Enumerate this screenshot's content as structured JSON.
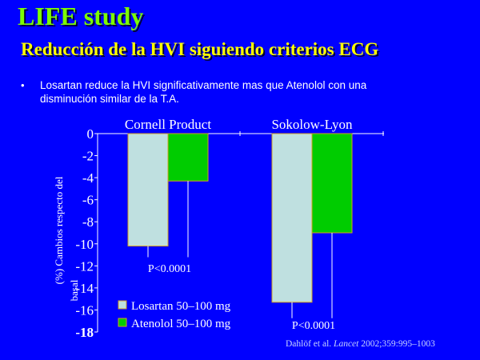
{
  "slide": {
    "title": "LIFE study",
    "subtitle": "Reducción de la HVI siguiendo criterios ECG",
    "bullet_marker": "•",
    "bullet": "Losartan reduce la HVI significativamente mas que Atenolol con una disminución similar de la T.A.",
    "citation": {
      "authors": "Dahlöf et al.",
      "journal": "Lancet",
      "ref": "2002;359:995–1003"
    }
  },
  "colors": {
    "background": "#0000ff",
    "title": "#7cfc00",
    "subtitle": "#ffff00",
    "losartan": "#bfe0e0",
    "atenolol": "#00cc00",
    "bar_outline": "#d4a020",
    "text": "#ffffff"
  },
  "chart_data": {
    "type": "bar",
    "categories": [
      "Cornell Product",
      "Sokolow-Lyon"
    ],
    "series": [
      {
        "name": "Losartan 50–100 mg",
        "values": [
          -10.2,
          -15.3
        ]
      },
      {
        "name": "Atenolol 50–100 mg",
        "values": [
          -4.3,
          -9.0
        ]
      }
    ],
    "ylabel_lines": [
      "(%) Cambios respecto del",
      "basal"
    ],
    "ylim": [
      -18,
      0
    ],
    "yticks": [
      0,
      -2,
      -4,
      -6,
      -8,
      -10,
      -12,
      -14,
      -16,
      -18
    ],
    "ytick_labels": [
      "0",
      "-2",
      "-4",
      "-6",
      "-8",
      "-10",
      "-12",
      "-14",
      "-16",
      "-18"
    ],
    "annotations": [
      {
        "category": "Cornell Product",
        "text": "P<0.0001"
      },
      {
        "category": "Sokolow-Lyon",
        "text": "P<0.0001"
      }
    ],
    "legend_position": "bottom-left",
    "grid": false
  }
}
